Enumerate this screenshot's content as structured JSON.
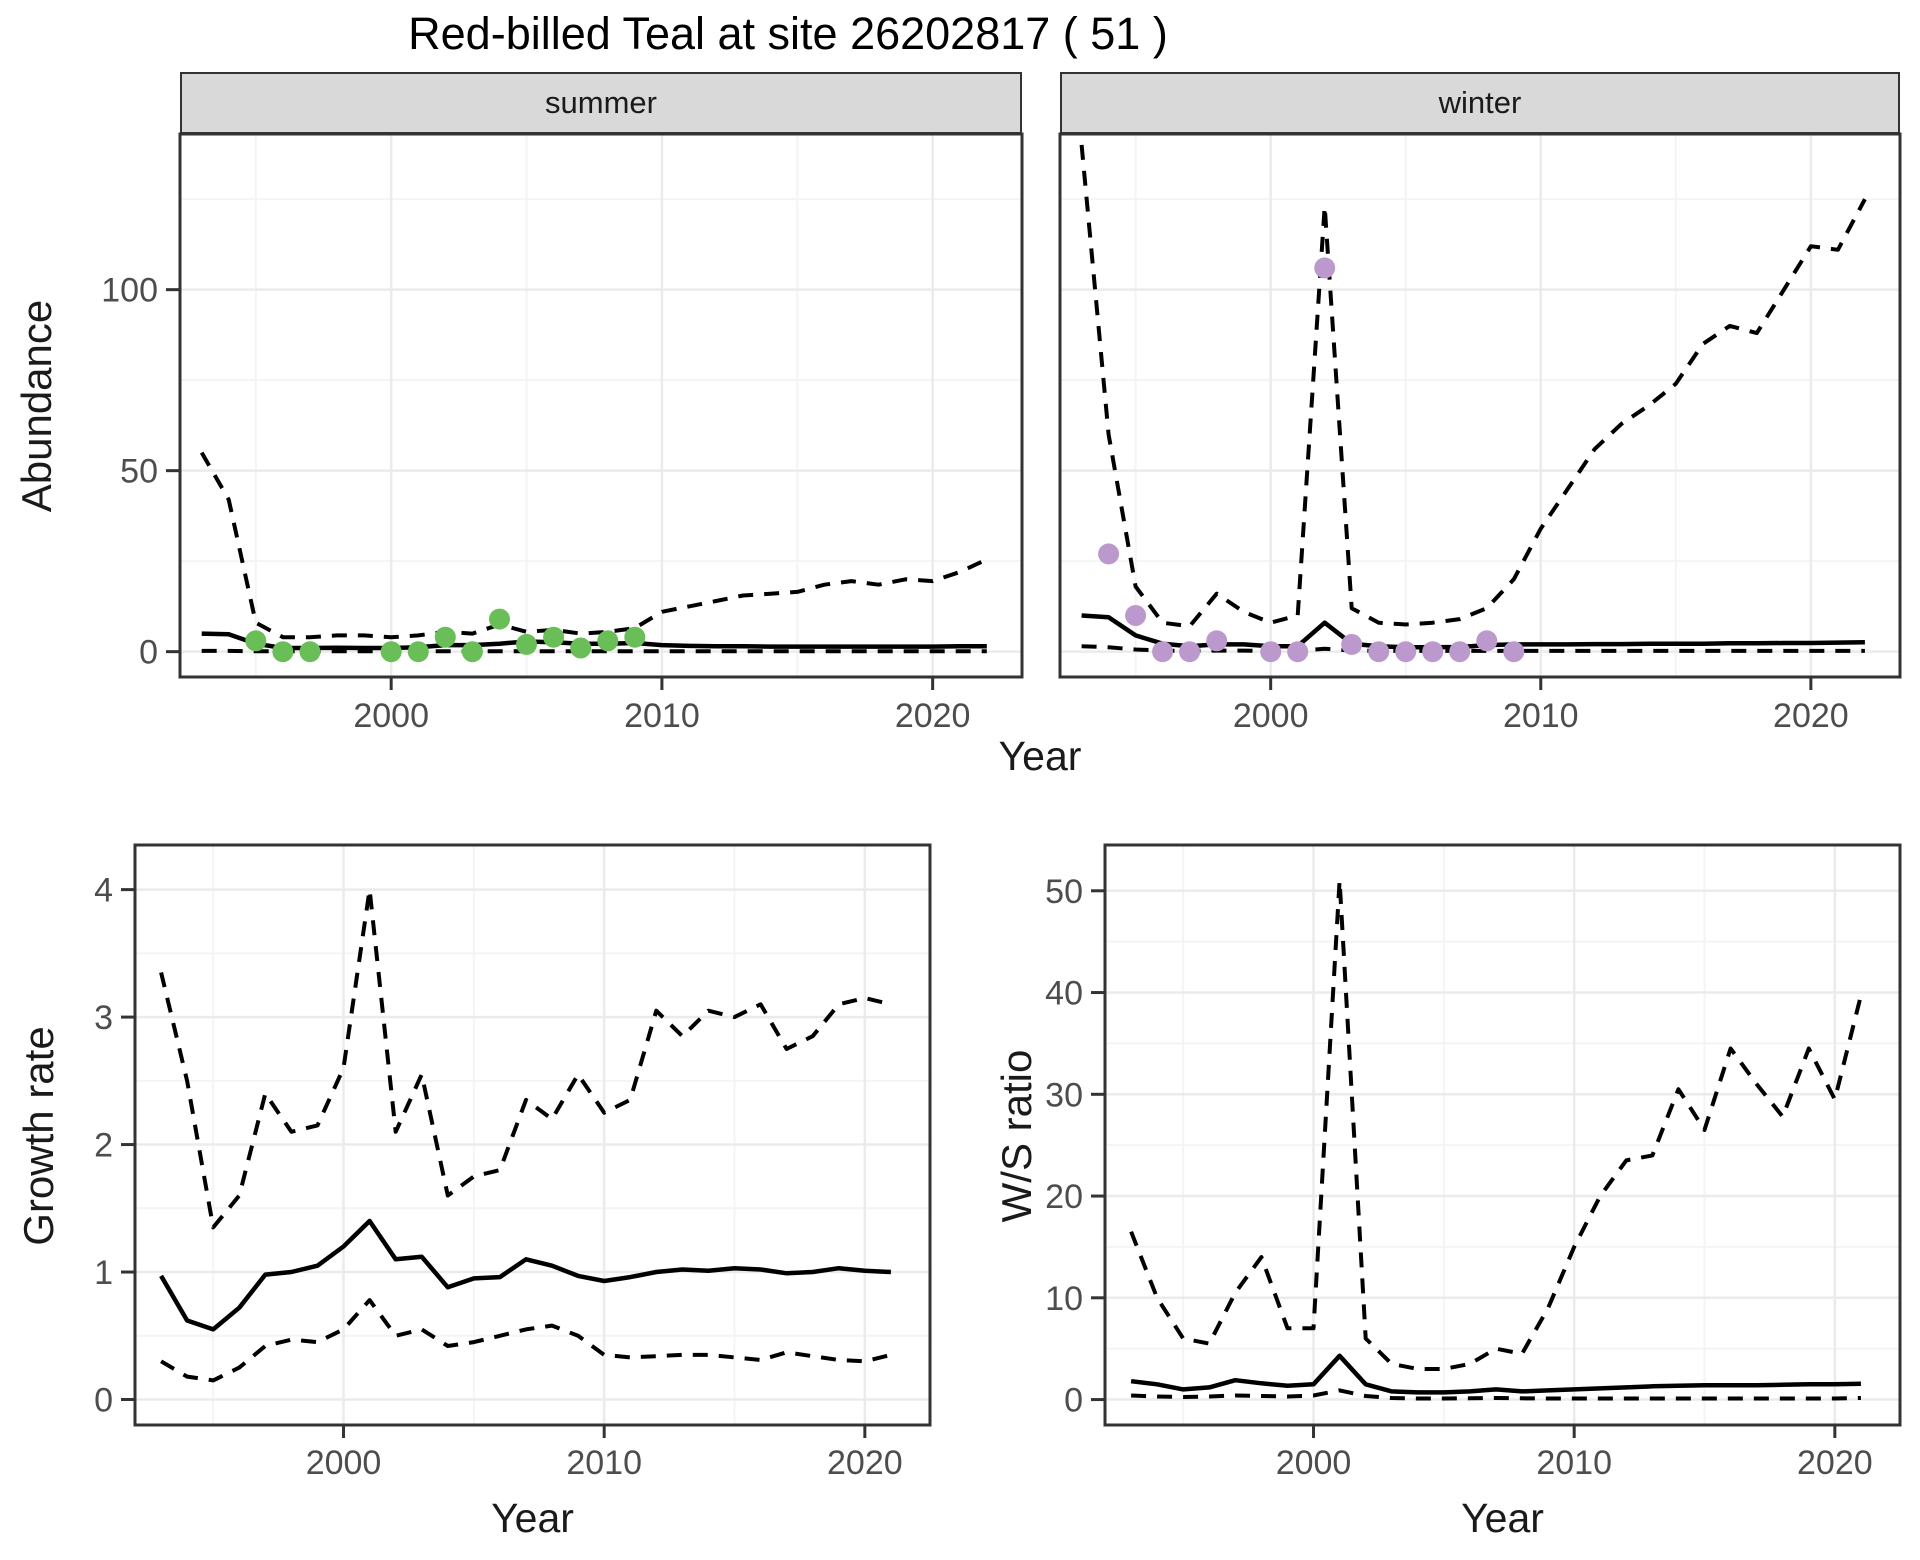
{
  "title": "Red-billed Teal at site 26202817 ( 51 )",
  "colors": {
    "summer_points": "#6abe58",
    "winter_points": "#bc99cd",
    "lines": "#000000",
    "strip_background": "#d9d9d9",
    "grid_major": "#ebebeb",
    "grid_minor": "#f4f4f4",
    "panel_border": "#333333",
    "tick_label": "#4d4d4d"
  },
  "chart_data": [
    {
      "id": "abundance-summer",
      "type": "line",
      "facet_label": "summer",
      "xlabel": "Year",
      "ylabel": "Abundance",
      "xlim": [
        1992.2,
        2023.3
      ],
      "ylim": [
        -7,
        143
      ],
      "x_major": [
        2000,
        2010,
        2020
      ],
      "x_minor": [
        1995,
        2005,
        2015
      ],
      "y_major": [
        0,
        50,
        100
      ],
      "y_minor": [
        25,
        75,
        125
      ],
      "legend": "none",
      "grid": true,
      "years": [
        1993,
        1994,
        1995,
        1996,
        1997,
        1998,
        1999,
        2000,
        2001,
        2002,
        2003,
        2004,
        2005,
        2006,
        2007,
        2008,
        2009,
        2010,
        2011,
        2012,
        2013,
        2014,
        2015,
        2016,
        2017,
        2018,
        2019,
        2020,
        2021,
        2022
      ],
      "series": [
        {
          "name": "upper_ci",
          "linetype": "dashed",
          "values": [
            55,
            42,
            8,
            4,
            4,
            4.5,
            4.5,
            4,
            4.5,
            5.5,
            5,
            7.5,
            5.5,
            6,
            5,
            5.5,
            6.5,
            11,
            12.5,
            14,
            15.5,
            16,
            16.5,
            18.5,
            19.5,
            18.5,
            20,
            19.5,
            22,
            25.5
          ]
        },
        {
          "name": "lower_ci",
          "linetype": "dashed",
          "values": [
            0.2,
            0.2,
            0.1,
            0.1,
            0.1,
            0.1,
            0.1,
            0.1,
            0.1,
            0.1,
            0.1,
            0.1,
            0.1,
            0.1,
            0.1,
            0.1,
            0.1,
            0.1,
            0.1,
            0.1,
            0.1,
            0.1,
            0.1,
            0.1,
            0.1,
            0.1,
            0.1,
            0.1,
            0.1,
            0.1
          ]
        },
        {
          "name": "fit",
          "linetype": "solid",
          "values": [
            5,
            4.8,
            2.2,
            1.0,
            1.0,
            1.1,
            1.0,
            1.0,
            1.2,
            1.8,
            1.8,
            2.2,
            2.8,
            2.6,
            2.2,
            2.2,
            2.4,
            1.8,
            1.6,
            1.5,
            1.5,
            1.4,
            1.4,
            1.4,
            1.4,
            1.4,
            1.4,
            1.4,
            1.5,
            1.5
          ]
        }
      ],
      "points": {
        "name": "summer observations",
        "color": "#6abe58",
        "years": [
          1995,
          1996,
          1997,
          2000,
          2001,
          2002,
          2003,
          2004,
          2005,
          2006,
          2007,
          2008,
          2009
        ],
        "values": [
          3,
          0,
          0,
          0,
          0,
          4,
          0,
          9,
          2,
          4,
          1,
          3,
          4
        ]
      }
    },
    {
      "id": "abundance-winter",
      "type": "line",
      "facet_label": "winter",
      "xlabel": "Year",
      "ylabel": "Abundance",
      "xlim": [
        1992.2,
        2023.3
      ],
      "ylim": [
        -7,
        143
      ],
      "x_major": [
        2000,
        2010,
        2020
      ],
      "x_minor": [
        1995,
        2005,
        2015
      ],
      "y_major": [
        0,
        50,
        100
      ],
      "y_minor": [
        25,
        75,
        125
      ],
      "legend": "none",
      "grid": true,
      "years": [
        1993,
        1994,
        1995,
        1996,
        1997,
        1998,
        1999,
        2000,
        2001,
        2002,
        2003,
        2004,
        2005,
        2006,
        2007,
        2008,
        2009,
        2010,
        2011,
        2012,
        2013,
        2014,
        2015,
        2016,
        2017,
        2018,
        2019,
        2020,
        2021,
        2022
      ],
      "series": [
        {
          "name": "upper_ci",
          "linetype": "dashed",
          "values": [
            140,
            60,
            18,
            8,
            7,
            16,
            11,
            8,
            10,
            123,
            12,
            8,
            7.5,
            8,
            9,
            12,
            20,
            34,
            45,
            56,
            63,
            68,
            74,
            85,
            90,
            88,
            100,
            112,
            111,
            125
          ]
        },
        {
          "name": "lower_ci",
          "linetype": "dashed",
          "values": [
            1.5,
            1.2,
            0.6,
            0.3,
            0.2,
            0.3,
            0.3,
            0.2,
            0.2,
            0.8,
            0.3,
            0.2,
            0.2,
            0.2,
            0.2,
            0.2,
            0.2,
            0.2,
            0.2,
            0.2,
            0.2,
            0.2,
            0.2,
            0.2,
            0.2,
            0.2,
            0.2,
            0.2,
            0.2,
            0.2
          ]
        },
        {
          "name": "fit",
          "linetype": "solid",
          "values": [
            10,
            9.5,
            4.5,
            2.2,
            1.5,
            2.0,
            2.0,
            1.5,
            1.5,
            8,
            2.2,
            1.5,
            1.2,
            1.2,
            1.3,
            1.8,
            2.0,
            2.0,
            2.0,
            2.1,
            2.1,
            2.2,
            2.2,
            2.2,
            2.3,
            2.3,
            2.4,
            2.4,
            2.5,
            2.6
          ]
        }
      ],
      "points": {
        "name": "winter observations",
        "color": "#bc99cd",
        "years": [
          1994,
          1995,
          1996,
          1997,
          1998,
          2000,
          2001,
          2002,
          2003,
          2004,
          2005,
          2006,
          2007,
          2008,
          2009
        ],
        "values": [
          27,
          10,
          0,
          0,
          3,
          0,
          0,
          106,
          2,
          0,
          0,
          0,
          0,
          3,
          0
        ]
      }
    },
    {
      "id": "growth-rate",
      "type": "line",
      "xlabel": "Year",
      "ylabel": "Growth rate",
      "xlim": [
        1992.0,
        2022.5
      ],
      "ylim": [
        -0.2,
        4.35
      ],
      "x_major": [
        2000,
        2010,
        2020
      ],
      "x_minor": [
        1995,
        2005,
        2015
      ],
      "y_major": [
        0,
        1,
        2,
        3,
        4
      ],
      "y_minor": [
        0.5,
        1.5,
        2.5,
        3.5
      ],
      "legend": "none",
      "grid": true,
      "years": [
        1993,
        1994,
        1995,
        1996,
        1997,
        1998,
        1999,
        2000,
        2001,
        2002,
        2003,
        2004,
        2005,
        2006,
        2007,
        2008,
        2009,
        2010,
        2011,
        2012,
        2013,
        2014,
        2015,
        2016,
        2017,
        2018,
        2019,
        2020,
        2021
      ],
      "series": [
        {
          "name": "upper_ci",
          "linetype": "dashed",
          "values": [
            3.35,
            2.5,
            1.35,
            1.6,
            2.4,
            2.1,
            2.15,
            2.6,
            4.0,
            2.1,
            2.55,
            1.6,
            1.75,
            1.8,
            2.35,
            2.2,
            2.55,
            2.25,
            2.35,
            3.05,
            2.85,
            3.05,
            3.0,
            3.1,
            2.75,
            2.85,
            3.1,
            3.15,
            3.1
          ]
        },
        {
          "name": "lower_ci",
          "linetype": "dashed",
          "values": [
            0.3,
            0.18,
            0.15,
            0.25,
            0.42,
            0.47,
            0.45,
            0.55,
            0.78,
            0.5,
            0.55,
            0.42,
            0.45,
            0.5,
            0.55,
            0.58,
            0.5,
            0.35,
            0.33,
            0.34,
            0.35,
            0.35,
            0.33,
            0.31,
            0.37,
            0.34,
            0.31,
            0.3,
            0.35
          ]
        },
        {
          "name": "fit",
          "linetype": "solid",
          "values": [
            0.97,
            0.62,
            0.55,
            0.72,
            0.98,
            1.0,
            1.05,
            1.2,
            1.4,
            1.1,
            1.12,
            0.88,
            0.95,
            0.96,
            1.1,
            1.05,
            0.97,
            0.93,
            0.96,
            1.0,
            1.02,
            1.01,
            1.03,
            1.02,
            0.99,
            1.0,
            1.03,
            1.01,
            1.0
          ]
        }
      ]
    },
    {
      "id": "ws-ratio",
      "type": "line",
      "xlabel": "Year",
      "ylabel": "W/S ratio",
      "xlim": [
        1992.0,
        2022.5
      ],
      "ylim": [
        -2.5,
        54.5
      ],
      "x_major": [
        2000,
        2010,
        2020
      ],
      "x_minor": [
        1995,
        2005,
        2015
      ],
      "y_major": [
        0,
        10,
        20,
        30,
        40,
        50
      ],
      "y_minor": [
        5,
        15,
        25,
        35,
        45
      ],
      "legend": "none",
      "grid": true,
      "years": [
        1993,
        1994,
        1995,
        1996,
        1997,
        1998,
        1999,
        2000,
        2001,
        2002,
        2003,
        2004,
        2005,
        2006,
        2007,
        2008,
        2009,
        2010,
        2011,
        2012,
        2013,
        2014,
        2015,
        2016,
        2017,
        2018,
        2019,
        2020,
        2021
      ],
      "series": [
        {
          "name": "upper_ci",
          "linetype": "dashed",
          "values": [
            16.5,
            10,
            6,
            5.5,
            10.5,
            14,
            7,
            7,
            51,
            6,
            3.5,
            3,
            3,
            3.5,
            5,
            4.5,
            9,
            15,
            20,
            23.5,
            24,
            30.5,
            26.5,
            34.5,
            31,
            27.8,
            34.5,
            29.5,
            39.7
          ]
        },
        {
          "name": "lower_ci",
          "linetype": "dashed",
          "values": [
            0.4,
            0.3,
            0.25,
            0.3,
            0.4,
            0.35,
            0.3,
            0.4,
            0.9,
            0.35,
            0.15,
            0.1,
            0.1,
            0.12,
            0.15,
            0.12,
            0.1,
            0.1,
            0.1,
            0.1,
            0.1,
            0.1,
            0.1,
            0.1,
            0.1,
            0.1,
            0.1,
            0.1,
            0.15
          ]
        },
        {
          "name": "fit",
          "linetype": "solid",
          "values": [
            1.8,
            1.5,
            1.0,
            1.2,
            1.9,
            1.6,
            1.35,
            1.5,
            4.3,
            1.5,
            0.8,
            0.7,
            0.7,
            0.8,
            1.0,
            0.8,
            0.9,
            1.0,
            1.1,
            1.2,
            1.3,
            1.35,
            1.4,
            1.4,
            1.4,
            1.45,
            1.5,
            1.5,
            1.55
          ]
        }
      ]
    }
  ]
}
